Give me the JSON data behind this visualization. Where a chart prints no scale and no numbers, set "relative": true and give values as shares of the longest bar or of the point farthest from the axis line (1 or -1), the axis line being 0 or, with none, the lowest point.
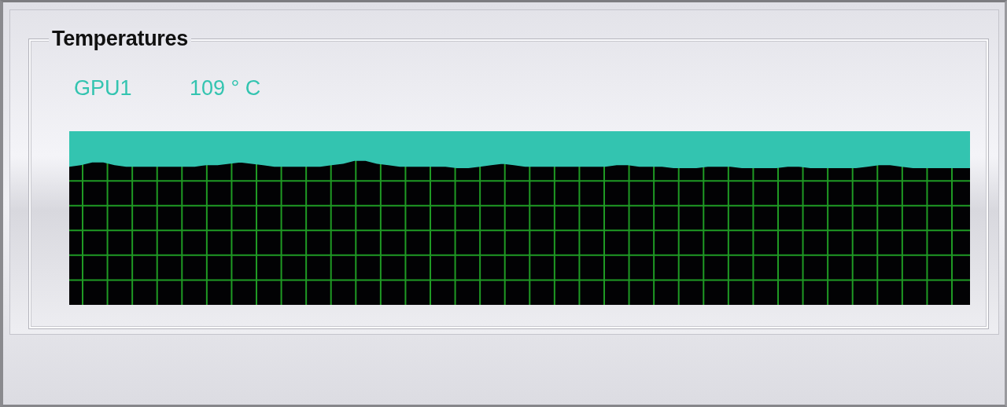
{
  "chart_data": {
    "type": "area",
    "title": "Temperatures",
    "relative": true,
    "grid": true,
    "legend": "top left",
    "categories": [
      null,
      null,
      null,
      null,
      null,
      null,
      null,
      null,
      null,
      null,
      null,
      null,
      null,
      null,
      null,
      null,
      null,
      null,
      null,
      null,
      null,
      null,
      null,
      null,
      null,
      null,
      null,
      null,
      null,
      null,
      null,
      null,
      null,
      null,
      null,
      null,
      null,
      null,
      null,
      null,
      null,
      null,
      null,
      null,
      null,
      null,
      null,
      null,
      null,
      null,
      null,
      null,
      null,
      null,
      null,
      null,
      null,
      null,
      null,
      null,
      null,
      null,
      null,
      null,
      null,
      null,
      null,
      null,
      null,
      null,
      null,
      null,
      null,
      null,
      null,
      null,
      null,
      null,
      null,
      null
    ],
    "series": [
      {
        "name": "GPU1",
        "color": "#33c4b0",
        "values": [
          0.96,
          0.97,
          0.99,
          0.99,
          0.97,
          0.96,
          0.96,
          0.96,
          0.96,
          0.96,
          0.96,
          0.96,
          0.97,
          0.97,
          0.98,
          0.99,
          0.98,
          0.97,
          0.96,
          0.96,
          0.96,
          0.96,
          0.96,
          0.97,
          0.98,
          1,
          1,
          0.98,
          0.97,
          0.96,
          0.96,
          0.96,
          0.96,
          0.96,
          0.95,
          0.95,
          0.96,
          0.97,
          0.98,
          0.97,
          0.96,
          0.96,
          0.96,
          0.96,
          0.96,
          0.96,
          0.96,
          0.96,
          0.97,
          0.97,
          0.96,
          0.96,
          0.96,
          0.95,
          0.95,
          0.95,
          0.96,
          0.96,
          0.96,
          0.95,
          0.95,
          0.95,
          0.95,
          0.96,
          0.96,
          0.95,
          0.95,
          0.95,
          0.95,
          0.95,
          0.96,
          0.97,
          0.97,
          0.96,
          0.95,
          0.95,
          0.95,
          0.95,
          0.95,
          0.95
        ]
      }
    ],
    "annotations": [
      "109 ° C"
    ]
  }
}
